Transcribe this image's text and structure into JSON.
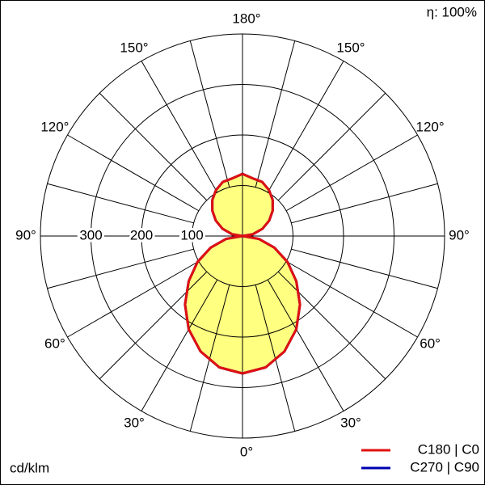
{
  "chart_data": {
    "type": "polar",
    "efficiency_label": "η: 100%",
    "unit_label": "cd/klm",
    "angles": [
      0,
      10,
      20,
      30,
      40,
      50,
      60,
      70,
      80,
      90,
      100,
      110,
      120,
      130,
      140,
      150,
      160,
      170,
      180
    ],
    "series": [
      {
        "name": "C270 | C90",
        "color": "#0000b0",
        "values": [
          272,
          264,
          243,
          213,
          177,
          139,
          103,
          67,
          33,
          0,
          21,
          42,
          61,
          78,
          93,
          105,
          114,
          116,
          123
        ]
      },
      {
        "name": "C180 | C0",
        "color": "#e01010",
        "values": [
          272,
          264,
          243,
          213,
          177,
          139,
          103,
          67,
          33,
          0,
          21,
          42,
          61,
          78,
          93,
          105,
          114,
          116,
          123
        ]
      }
    ],
    "fill_color": "#ffff80",
    "rlim": [
      0,
      400
    ],
    "rticks": [
      100,
      200,
      300
    ],
    "angle_ticks": [
      {
        "value": 0,
        "label": "0°"
      },
      {
        "value": 30,
        "label": "30°"
      },
      {
        "value": 60,
        "label": "60°"
      },
      {
        "value": 90,
        "label": "90°"
      },
      {
        "value": 120,
        "label": "120°"
      },
      {
        "value": 150,
        "label": "150°"
      },
      {
        "value": 180,
        "label": "180°"
      }
    ],
    "spoke_step": 15
  }
}
